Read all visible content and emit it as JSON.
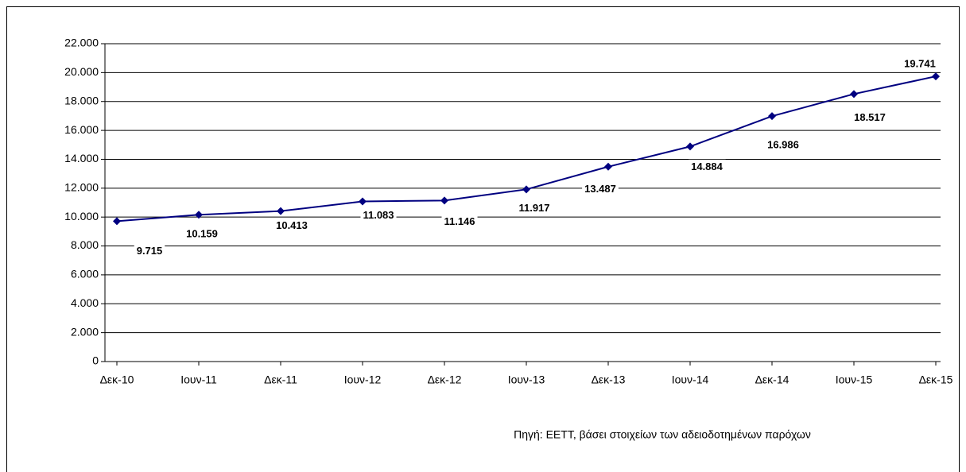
{
  "chart_data": {
    "type": "line",
    "categories": [
      "Δεκ-10",
      "Ιουν-11",
      "Δεκ-11",
      "Ιουν-12",
      "Δεκ-12",
      "Ιουν-13",
      "Δεκ-13",
      "Ιουν-14",
      "Δεκ-14",
      "Ιουν-15",
      "Δεκ-15"
    ],
    "series": [
      {
        "color": "#000080",
        "values": [
          9715,
          10159,
          10413,
          11083,
          11146,
          11917,
          13487,
          14884,
          16986,
          18517,
          19741
        ],
        "value_labels": [
          "9.715",
          "10.159",
          "10.413",
          "11.083",
          "11.146",
          "11.917",
          "13.487",
          "14.884",
          "16.986",
          "18.517",
          "19.741"
        ]
      }
    ],
    "ylim": [
      0,
      22000
    ],
    "yticks": [
      0,
      {
        "value": 2000,
        "label": "2.000"
      },
      {
        "value": 4000,
        "label": "4.000"
      },
      {
        "value": 6000,
        "label": "6.000"
      },
      {
        "value": 8000,
        "label": "8.000"
      },
      {
        "value": 10000,
        "label": "10.000"
      },
      {
        "value": 12000,
        "label": "12.000"
      },
      {
        "value": 14000,
        "label": "14.000"
      },
      {
        "value": 16000,
        "label": "16.000"
      },
      {
        "value": 18000,
        "label": "18.000"
      },
      {
        "value": 20000,
        "label": "20.000"
      },
      {
        "value": 22000,
        "label": "22.000"
      }
    ],
    "grid": true,
    "source": "Πηγή: ΕΕΤΤ, βάσει στοιχείων των αδειοδοτημένων παρόχων"
  }
}
